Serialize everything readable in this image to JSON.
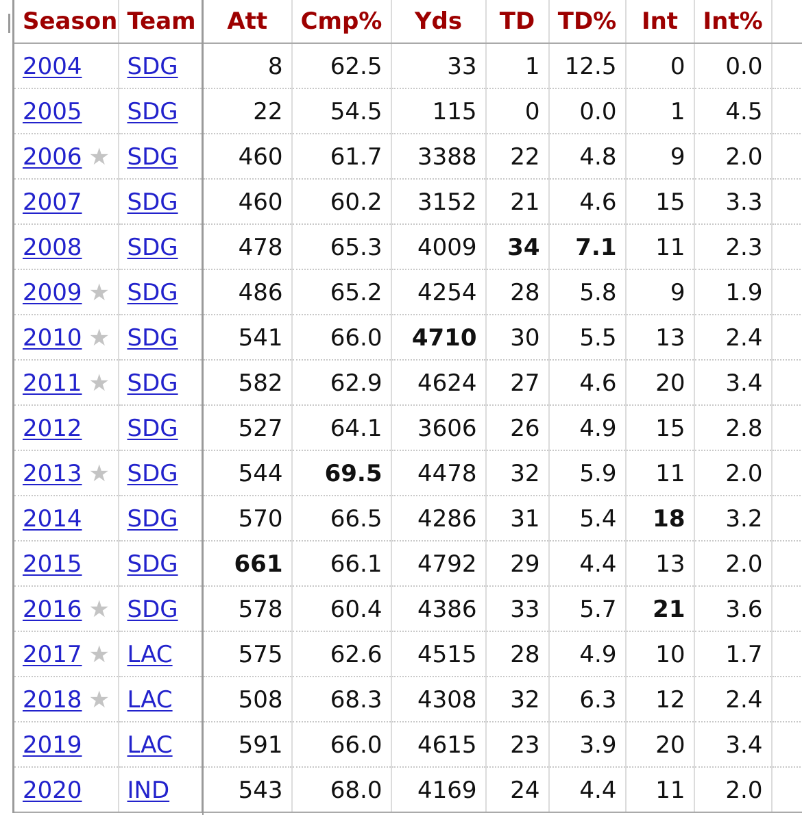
{
  "table": {
    "headers": [
      "Season",
      "Team",
      "Att",
      "Cmp%",
      "Yds",
      "TD",
      "TD%",
      "Int",
      "Int%"
    ],
    "award_marker": "★",
    "rows": [
      {
        "season": "2004",
        "pro_bowl": false,
        "team": "SDG",
        "att": "8",
        "cmp_pct": "62.5",
        "yds": "33",
        "td": "1",
        "td_pct": "12.5",
        "int": "0",
        "int_pct": "0.0",
        "bold": []
      },
      {
        "season": "2005",
        "pro_bowl": false,
        "team": "SDG",
        "att": "22",
        "cmp_pct": "54.5",
        "yds": "115",
        "td": "0",
        "td_pct": "0.0",
        "int": "1",
        "int_pct": "4.5",
        "bold": []
      },
      {
        "season": "2006",
        "pro_bowl": true,
        "team": "SDG",
        "att": "460",
        "cmp_pct": "61.7",
        "yds": "3388",
        "td": "22",
        "td_pct": "4.8",
        "int": "9",
        "int_pct": "2.0",
        "bold": []
      },
      {
        "season": "2007",
        "pro_bowl": false,
        "team": "SDG",
        "att": "460",
        "cmp_pct": "60.2",
        "yds": "3152",
        "td": "21",
        "td_pct": "4.6",
        "int": "15",
        "int_pct": "3.3",
        "bold": []
      },
      {
        "season": "2008",
        "pro_bowl": false,
        "team": "SDG",
        "att": "478",
        "cmp_pct": "65.3",
        "yds": "4009",
        "td": "34",
        "td_pct": "7.1",
        "int": "11",
        "int_pct": "2.3",
        "bold": [
          "td",
          "td_pct"
        ]
      },
      {
        "season": "2009",
        "pro_bowl": true,
        "team": "SDG",
        "att": "486",
        "cmp_pct": "65.2",
        "yds": "4254",
        "td": "28",
        "td_pct": "5.8",
        "int": "9",
        "int_pct": "1.9",
        "bold": []
      },
      {
        "season": "2010",
        "pro_bowl": true,
        "team": "SDG",
        "att": "541",
        "cmp_pct": "66.0",
        "yds": "4710",
        "td": "30",
        "td_pct": "5.5",
        "int": "13",
        "int_pct": "2.4",
        "bold": [
          "yds"
        ]
      },
      {
        "season": "2011",
        "pro_bowl": true,
        "team": "SDG",
        "att": "582",
        "cmp_pct": "62.9",
        "yds": "4624",
        "td": "27",
        "td_pct": "4.6",
        "int": "20",
        "int_pct": "3.4",
        "bold": []
      },
      {
        "season": "2012",
        "pro_bowl": false,
        "team": "SDG",
        "att": "527",
        "cmp_pct": "64.1",
        "yds": "3606",
        "td": "26",
        "td_pct": "4.9",
        "int": "15",
        "int_pct": "2.8",
        "bold": []
      },
      {
        "season": "2013",
        "pro_bowl": true,
        "team": "SDG",
        "att": "544",
        "cmp_pct": "69.5",
        "yds": "4478",
        "td": "32",
        "td_pct": "5.9",
        "int": "11",
        "int_pct": "2.0",
        "bold": [
          "cmp_pct"
        ]
      },
      {
        "season": "2014",
        "pro_bowl": false,
        "team": "SDG",
        "att": "570",
        "cmp_pct": "66.5",
        "yds": "4286",
        "td": "31",
        "td_pct": "5.4",
        "int": "18",
        "int_pct": "3.2",
        "bold": [
          "int"
        ]
      },
      {
        "season": "2015",
        "pro_bowl": false,
        "team": "SDG",
        "att": "661",
        "cmp_pct": "66.1",
        "yds": "4792",
        "td": "29",
        "td_pct": "4.4",
        "int": "13",
        "int_pct": "2.0",
        "bold": [
          "att"
        ]
      },
      {
        "season": "2016",
        "pro_bowl": true,
        "team": "SDG",
        "att": "578",
        "cmp_pct": "60.4",
        "yds": "4386",
        "td": "33",
        "td_pct": "5.7",
        "int": "21",
        "int_pct": "3.6",
        "bold": [
          "int"
        ]
      },
      {
        "season": "2017",
        "pro_bowl": true,
        "team": "LAC",
        "att": "575",
        "cmp_pct": "62.6",
        "yds": "4515",
        "td": "28",
        "td_pct": "4.9",
        "int": "10",
        "int_pct": "1.7",
        "bold": []
      },
      {
        "season": "2018",
        "pro_bowl": true,
        "team": "LAC",
        "att": "508",
        "cmp_pct": "68.3",
        "yds": "4308",
        "td": "32",
        "td_pct": "6.3",
        "int": "12",
        "int_pct": "2.4",
        "bold": []
      },
      {
        "season": "2019",
        "pro_bowl": false,
        "team": "LAC",
        "att": "591",
        "cmp_pct": "66.0",
        "yds": "4615",
        "td": "23",
        "td_pct": "3.9",
        "int": "20",
        "int_pct": "3.4",
        "bold": []
      },
      {
        "season": "2020",
        "pro_bowl": false,
        "team": "IND",
        "att": "543",
        "cmp_pct": "68.0",
        "yds": "4169",
        "td": "24",
        "td_pct": "4.4",
        "int": "11",
        "int_pct": "2.0",
        "bold": []
      }
    ]
  },
  "colors": {
    "header_text": "#9d0000",
    "link": "#2222cc",
    "star": "#c4c4c4",
    "text": "#111111"
  }
}
